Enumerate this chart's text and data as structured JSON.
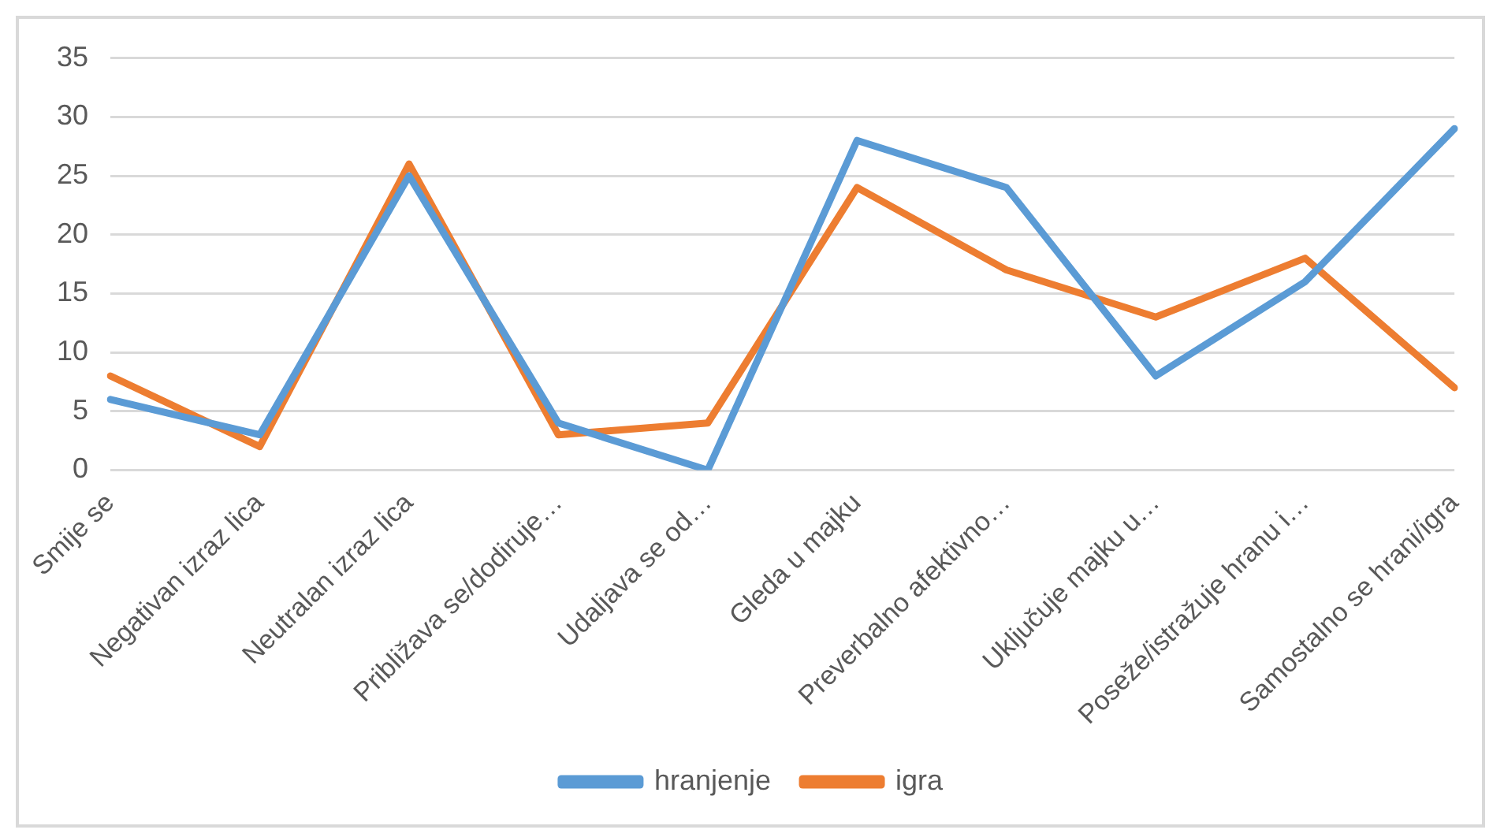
{
  "chart_data": {
    "type": "line",
    "categories": [
      "Smije se",
      "Negativan izraz lica",
      "Neutralan izraz lica",
      "Približava se/dodiruje…",
      "Udaljava se od…",
      "Gleda u majku",
      "Preverbalno afektivno…",
      "Uključuje majku u…",
      "Poseže/istražuje hranu i…",
      "Samostalno se hrani/igra"
    ],
    "series": [
      {
        "name": "hranjenje",
        "color": "#5b9bd5",
        "values": [
          6,
          3,
          25,
          4,
          0,
          28,
          24,
          8,
          16,
          29
        ]
      },
      {
        "name": "igra",
        "color": "#ed7d31",
        "values": [
          8,
          2,
          26,
          3,
          4,
          24,
          17,
          13,
          18,
          7
        ]
      }
    ],
    "ylim": [
      0,
      35
    ],
    "yticks": [
      0,
      5,
      10,
      15,
      20,
      25,
      30,
      35
    ],
    "grid": "y",
    "legend": "bottom",
    "marker": "none",
    "line_style": "solid"
  }
}
